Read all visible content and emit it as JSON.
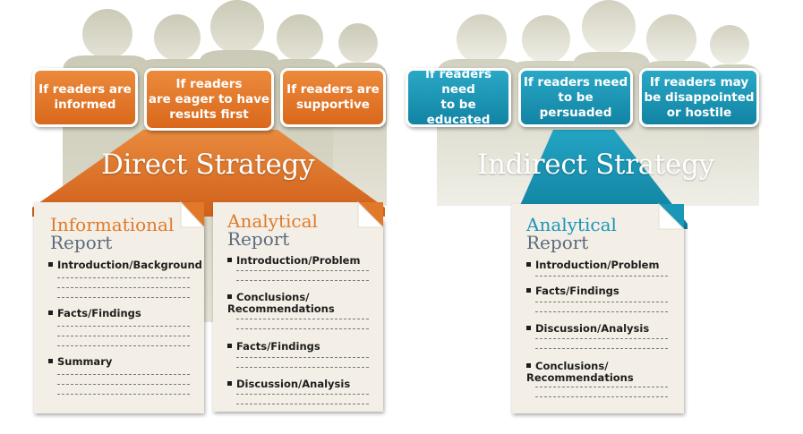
{
  "direct": {
    "title": "Direct Strategy",
    "audiences": [
      {
        "text": "If readers are\ninformed"
      },
      {
        "text": "If readers\nare eager to have\nresults first"
      },
      {
        "text": "If readers are\nsupportive"
      }
    ],
    "reports": [
      {
        "title_line1": "Informational",
        "title_line2": "Report",
        "items": [
          "Introduction/Background",
          "Facts/Findings",
          "Summary"
        ]
      },
      {
        "title_line1": "Analytical",
        "title_line2": "Report",
        "items": [
          "Introduction/Problem",
          "Conclusions/\nRecommendations",
          "Facts/Findings",
          "Discussion/Analysis"
        ]
      }
    ]
  },
  "indirect": {
    "title": "Indirect Strategy",
    "audiences": [
      {
        "text": "If readers need\nto be educated"
      },
      {
        "text": "If readers need\nto be persuaded"
      },
      {
        "text": "If readers may\nbe disappointed\nor hostile"
      }
    ],
    "reports": [
      {
        "title_line1": "Analytical",
        "title_line2": "Report",
        "items": [
          "Introduction/Problem",
          "Facts/Findings",
          "Discussion/Analysis",
          "Conclusions/\nRecommendations"
        ]
      }
    ]
  },
  "colors": {
    "orange": "#e07a2a",
    "teal": "#1a96b8",
    "silhouette": "#c9c8b6",
    "card": "#f3efe6"
  }
}
